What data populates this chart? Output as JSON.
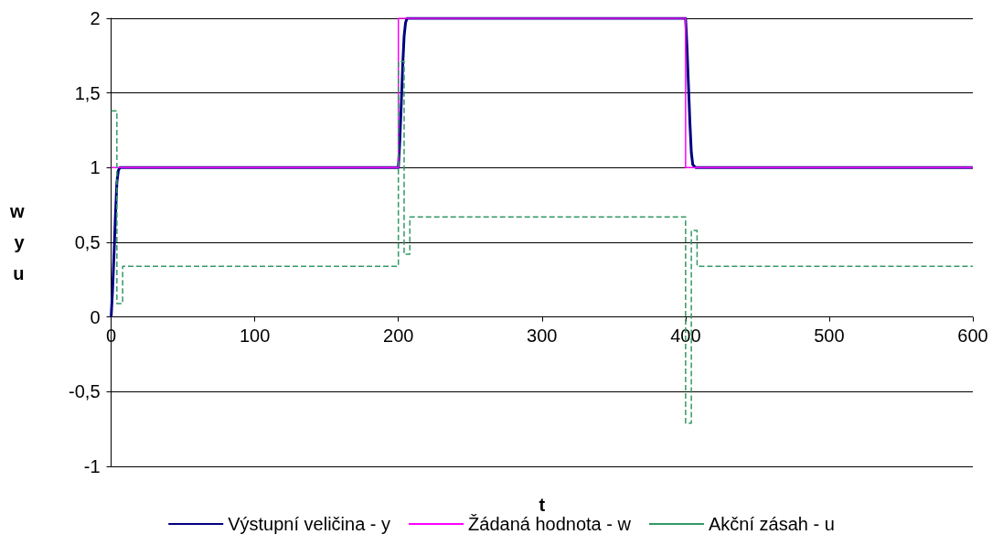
{
  "chart_data": {
    "type": "line",
    "xlabel": "t",
    "ylabel": "w\ny\nu",
    "xlim": [
      0,
      600
    ],
    "xticks": [
      0,
      100,
      200,
      300,
      400,
      500,
      600
    ],
    "ylim": [
      -1,
      2
    ],
    "yticks": [
      {
        "value": -1,
        "label": "-1"
      },
      {
        "value": -0.5,
        "label": "-0,5"
      },
      {
        "value": 0,
        "label": "0"
      },
      {
        "value": 0.5,
        "label": "0,5"
      },
      {
        "value": 1,
        "label": "1"
      },
      {
        "value": 1.5,
        "label": "1,5"
      },
      {
        "value": 2,
        "label": "2"
      }
    ],
    "grid": "y",
    "legend": "bottom",
    "marker": "none",
    "series": [
      {
        "name": "Výstupní veličina - y",
        "color": "#000080",
        "x": [
          0,
          1,
          2,
          3,
          4,
          5,
          6,
          200,
          201,
          202,
          203,
          204,
          205,
          206,
          400,
          401,
          402,
          403,
          404,
          405,
          406,
          407,
          600
        ],
        "values": [
          0,
          0.18,
          0.42,
          0.68,
          0.9,
          0.98,
          1,
          1,
          1.18,
          1.42,
          1.68,
          1.88,
          1.97,
          2,
          2,
          1.8,
          1.55,
          1.3,
          1.1,
          1.02,
          1.01,
          1,
          1
        ]
      },
      {
        "name": "Žádaná hodnota - w",
        "type": "step",
        "color": "#ff00ff",
        "x": [
          0,
          200,
          400,
          600
        ],
        "values": [
          1,
          2,
          1,
          1
        ]
      },
      {
        "name": "Akční zásah - u",
        "type": "step",
        "color": "#339966",
        "line_style": "dashed",
        "x": [
          0,
          4,
          8,
          200,
          204,
          208,
          400,
          404,
          408,
          600
        ],
        "values": [
          1.38,
          0.09,
          0.34,
          1.71,
          0.42,
          0.67,
          -0.71,
          0.58,
          0.34,
          0.34
        ]
      }
    ]
  }
}
